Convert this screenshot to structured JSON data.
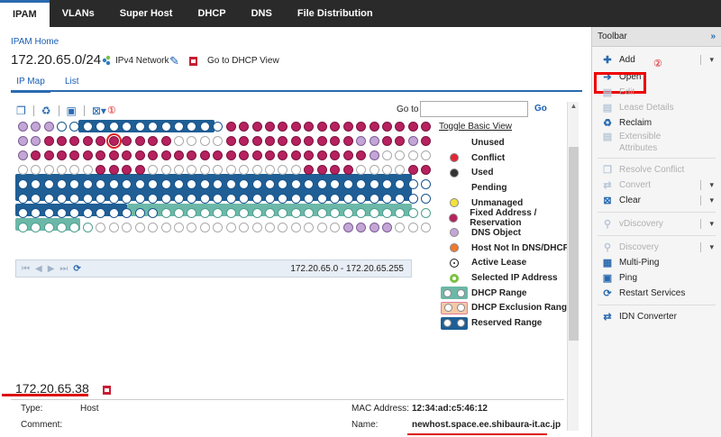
{
  "nav": {
    "tabs": [
      "IPAM",
      "VLANs",
      "Super Host",
      "DHCP",
      "DNS",
      "File Distribution"
    ],
    "active": "IPAM"
  },
  "breadcrumb": "IPAM Home",
  "network": {
    "title": "172.20.65.0/24",
    "type_label": "IPv4 Network",
    "dhcp_link": "Go to DHCP View"
  },
  "subtabs": {
    "ipmap": "IP Map",
    "list": "List"
  },
  "annotations": {
    "one": "①",
    "two": "②"
  },
  "goto": {
    "label": "Go to",
    "value": "",
    "button": "Go"
  },
  "grid": {
    "rows": [
      "DDDRRRRRRRRRRRRRFFFFFFFFFFFFFFFFFFFFFFFFFFFFFFF",
      "DDFFFFFSFFFFUUUUFFFFFFFFFFDDFFDFFFFFFFFFFFFFFFFFF",
      "DFFFFFFFFFFFFFFFFFFFFFFFFFFDUUUUUUUUUUUUUUUUUUUUU",
      "UUUUUUFFFFUUUUUUUUUUUUFFFFUUUUFFUUUUUUUUUUUUUUUUU",
      "RRRRRRRRRRRRRRRRRRRRRRRRRRRRRRRRRRRRRRRRRRRRRRRRR",
      "RRRRRRRRRRRRRRRRRRRRRRRRRRRRRRRRRRRRRRRRRRRRRRRRR",
      "RRRRRRRRRRRCCCCCCCCCCCCCCCCCCCCCCCCCCCCCCCCCCCCCC",
      "CCCCCCUUUUUUUUUUUUUUUUUUUDDDDUUUUUUUUUUUUUUUUUUUK"
    ],
    "range_text": "172.20.65.0 - 172.20.65.255"
  },
  "legend": {
    "toggle": "Toggle Basic View",
    "items": [
      {
        "label": "Unused",
        "kind": "none",
        "color": ""
      },
      {
        "label": "Conflict",
        "kind": "dot",
        "color": "#e32636"
      },
      {
        "label": "Used",
        "kind": "dot",
        "color": "#333333"
      },
      {
        "label": "Pending",
        "kind": "none",
        "color": ""
      },
      {
        "label": "Unmanaged",
        "kind": "dot",
        "color": "#f2e33a"
      },
      {
        "label": "Fixed Address / Reservation",
        "kind": "dot",
        "color": "#b6215e"
      },
      {
        "label": "DNS Object",
        "kind": "dot",
        "color": "#c3a6d6"
      },
      {
        "label": "Host Not In DNS/DHCP",
        "kind": "dot",
        "color": "#ef7a2e"
      },
      {
        "label": "Active Lease",
        "kind": "lease",
        "color": "#ffffff"
      },
      {
        "label": "Selected IP Address",
        "kind": "ring",
        "color": "#7ac143"
      },
      {
        "label": "DHCP Range",
        "kind": "box",
        "color": "#6cb8a8"
      },
      {
        "label": "DHCP Exclusion Range",
        "kind": "excl",
        "color": "#f3c9a6"
      },
      {
        "label": "Reserved Range",
        "kind": "box",
        "color": "#1f5f95"
      }
    ]
  },
  "detail": {
    "ip": "172.20.65.38",
    "type_label": "Type:",
    "type_value": "Host",
    "comment_label": "Comment:",
    "comment_value": "",
    "mac_label": "MAC Address:",
    "mac_value": "12:34:ad:c5:46:12",
    "name_label": "Name:",
    "name_value": "newhost.space.ee.shibaura-it.ac.jp"
  },
  "toolbar": {
    "title": "Toolbar",
    "add": "Add",
    "open": "Open",
    "edit": "Edit",
    "lease_details": "Lease Details",
    "reclaim": "Reclaim",
    "extensible_1": "Extensible",
    "extensible_2": "Attributes",
    "resolve_conflict": "Resolve Conflict",
    "convert": "Convert",
    "clear": "Clear",
    "vdiscovery": "vDiscovery",
    "discovery": "Discovery",
    "multi_ping": "Multi-Ping",
    "ping": "Ping",
    "restart": "Restart Services",
    "idn": "IDN Converter"
  }
}
